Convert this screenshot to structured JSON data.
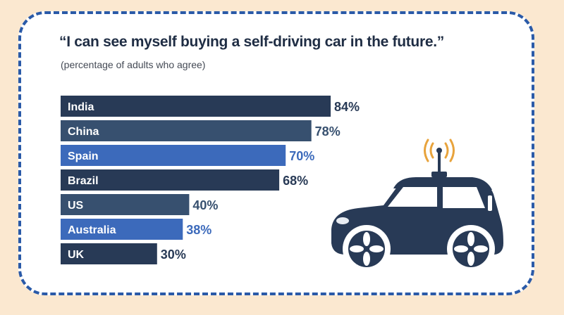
{
  "chart_data": {
    "type": "bar",
    "orientation": "horizontal",
    "title": "“I can see myself buying a self-driving car in the future.”",
    "subtitle": "(percentage of adults who agree)",
    "categories": [
      "India",
      "China",
      "Spain",
      "Brazil",
      "US",
      "Australia",
      "UK"
    ],
    "values": [
      84,
      78,
      70,
      68,
      40,
      38,
      30
    ],
    "value_labels": [
      "84%",
      "78%",
      "70%",
      "68%",
      "40%",
      "38%",
      "30%"
    ],
    "bar_colors": [
      "#283a56",
      "#37506f",
      "#3c6abb",
      "#283a56",
      "#37506f",
      "#3c6abb",
      "#283a56"
    ],
    "value_colors": [
      "#283a56",
      "#37506f",
      "#3c6abb",
      "#283a56",
      "#37506f",
      "#3c6abb",
      "#283a56"
    ],
    "xlim": [
      0,
      100
    ],
    "grid": false,
    "legend": "none"
  },
  "colors": {
    "page_background": "#fbe8d0",
    "card_border": "#2a5aa8",
    "car_body": "#283a56",
    "signal": "#e8a33c"
  },
  "illustration": "self-driving-car-icon"
}
